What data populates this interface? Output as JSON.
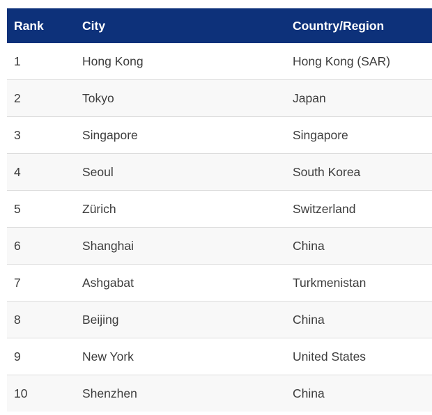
{
  "chart_data": {
    "type": "table",
    "columns": [
      "Rank",
      "City",
      "Country/Region"
    ],
    "rows": [
      {
        "rank": "1",
        "city": "Hong Kong",
        "country": "Hong Kong (SAR)"
      },
      {
        "rank": "2",
        "city": "Tokyo",
        "country": "Japan"
      },
      {
        "rank": "3",
        "city": "Singapore",
        "country": "Singapore"
      },
      {
        "rank": "4",
        "city": "Seoul",
        "country": "South Korea"
      },
      {
        "rank": "5",
        "city": "Zürich",
        "country": "Switzerland"
      },
      {
        "rank": "6",
        "city": "Shanghai",
        "country": "China"
      },
      {
        "rank": "7",
        "city": "Ashgabat",
        "country": "Turkmenistan"
      },
      {
        "rank": "8",
        "city": "Beijing",
        "country": "China"
      },
      {
        "rank": "9",
        "city": "New York",
        "country": "United States"
      },
      {
        "rank": "10",
        "city": "Shenzhen",
        "country": "China"
      }
    ],
    "layout": {
      "header_bg": "#0d317a",
      "header_text_color": "#ffffff",
      "alt_row_bg": "#f8f8f8",
      "row_border_color": "#dddddd",
      "cell_text_color": "#3d3d3d"
    }
  }
}
